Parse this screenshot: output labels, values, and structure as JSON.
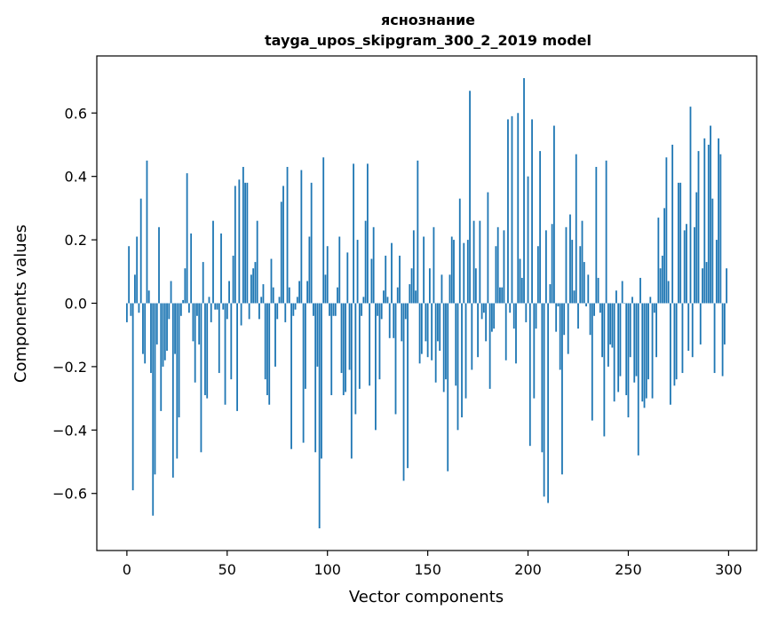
{
  "chart_data": {
    "type": "bar",
    "title_line1": "яснознание",
    "title_line2": "tayga_upos_skipgram_300_2_2019 model",
    "xlabel": "Vector components",
    "ylabel": "Components values",
    "xlim": [
      -15,
      314
    ],
    "ylim": [
      -0.78,
      0.78
    ],
    "xticks": [
      0,
      50,
      100,
      150,
      200,
      250,
      300
    ],
    "xtick_labels": [
      "0",
      "50",
      "100",
      "150",
      "200",
      "250",
      "300"
    ],
    "yticks": [
      -0.6,
      -0.4,
      -0.2,
      0.0,
      0.2,
      0.4,
      0.6
    ],
    "ytick_labels": [
      "−0.6",
      "−0.4",
      "−0.2",
      "0.0",
      "0.2",
      "0.4",
      "0.6"
    ],
    "bar_color": "#1f77b4",
    "grid": false,
    "values": [
      -0.06,
      0.18,
      -0.04,
      -0.59,
      0.09,
      0.21,
      -0.03,
      0.33,
      -0.16,
      -0.19,
      0.45,
      0.04,
      -0.22,
      -0.67,
      -0.54,
      -0.13,
      0.24,
      -0.34,
      -0.2,
      -0.18,
      -0.15,
      -0.05,
      0.07,
      -0.55,
      -0.16,
      -0.49,
      -0.36,
      -0.04,
      0.01,
      0.11,
      0.41,
      -0.03,
      0.22,
      -0.12,
      -0.25,
      -0.04,
      -0.13,
      -0.47,
      0.13,
      -0.29,
      -0.3,
      0.02,
      -0.06,
      0.26,
      -0.02,
      -0.02,
      -0.22,
      0.22,
      -0.02,
      -0.32,
      -0.05,
      0.07,
      -0.24,
      0.15,
      0.37,
      -0.34,
      0.39,
      -0.07,
      0.43,
      0.38,
      0.38,
      -0.05,
      0.09,
      0.11,
      0.13,
      0.26,
      -0.05,
      0.02,
      0.06,
      -0.24,
      -0.29,
      -0.32,
      0.14,
      0.05,
      -0.2,
      -0.05,
      0.02,
      0.32,
      0.37,
      -0.06,
      0.43,
      0.05,
      -0.46,
      -0.04,
      -0.02,
      0.02,
      0.07,
      0.42,
      -0.44,
      -0.27,
      0.07,
      0.21,
      0.38,
      -0.04,
      -0.47,
      -0.2,
      -0.71,
      -0.49,
      0.46,
      0.09,
      0.18,
      -0.04,
      -0.29,
      -0.04,
      -0.04,
      0.05,
      0.21,
      -0.22,
      -0.29,
      -0.28,
      0.16,
      -0.21,
      -0.49,
      0.44,
      -0.35,
      0.2,
      -0.27,
      -0.04,
      0.02,
      0.26,
      0.44,
      -0.26,
      0.14,
      0.24,
      -0.4,
      -0.04,
      -0.24,
      -0.05,
      0.04,
      0.15,
      0.02,
      -0.11,
      0.19,
      -0.11,
      -0.35,
      0.05,
      0.15,
      -0.12,
      -0.56,
      -0.05,
      -0.52,
      0.06,
      0.11,
      0.23,
      0.04,
      0.45,
      -0.19,
      -0.16,
      0.21,
      -0.12,
      -0.17,
      0.11,
      -0.18,
      0.24,
      -0.25,
      -0.12,
      -0.15,
      0.09,
      -0.28,
      -0.24,
      -0.53,
      0.09,
      0.21,
      0.2,
      -0.26,
      -0.4,
      0.33,
      -0.36,
      0.19,
      -0.3,
      0.2,
      0.67,
      -0.21,
      0.26,
      0.11,
      -0.17,
      0.26,
      -0.05,
      -0.03,
      -0.12,
      0.35,
      -0.27,
      -0.09,
      -0.08,
      0.18,
      0.24,
      0.05,
      0.05,
      0.23,
      -0.18,
      0.58,
      -0.03,
      0.59,
      -0.08,
      -0.19,
      0.6,
      0.14,
      0.08,
      0.71,
      -0.06,
      0.4,
      -0.45,
      0.58,
      -0.3,
      -0.08,
      0.18,
      0.48,
      -0.47,
      -0.61,
      0.23,
      -0.63,
      0.06,
      0.25,
      0.56,
      -0.09,
      -0.01,
      -0.21,
      -0.54,
      -0.1,
      0.24,
      -0.16,
      0.28,
      0.2,
      0.04,
      0.47,
      -0.08,
      0.18,
      0.26,
      0.13,
      -0.01,
      0.09,
      -0.1,
      -0.37,
      -0.04,
      0.43,
      0.08,
      -0.03,
      -0.17,
      -0.42,
      0.45,
      -0.2,
      -0.13,
      -0.14,
      -0.31,
      0.04,
      -0.28,
      -0.23,
      0.07,
      0.0,
      -0.29,
      -0.36,
      -0.17,
      0.02,
      -0.25,
      -0.23,
      -0.48,
      0.08,
      -0.31,
      -0.33,
      -0.3,
      -0.24,
      0.02,
      -0.3,
      -0.03,
      -0.17,
      0.27,
      0.11,
      0.15,
      0.3,
      0.46,
      0.07,
      -0.32,
      0.5,
      -0.26,
      -0.24,
      0.38,
      0.38,
      -0.22,
      0.23,
      0.25,
      -0.15,
      0.62,
      -0.17,
      0.24,
      0.35,
      0.48,
      -0.13,
      0.11,
      0.52,
      0.13,
      0.5,
      0.56,
      0.33,
      -0.22,
      0.2,
      0.52,
      0.47,
      -0.23,
      -0.13,
      0.11
    ]
  }
}
